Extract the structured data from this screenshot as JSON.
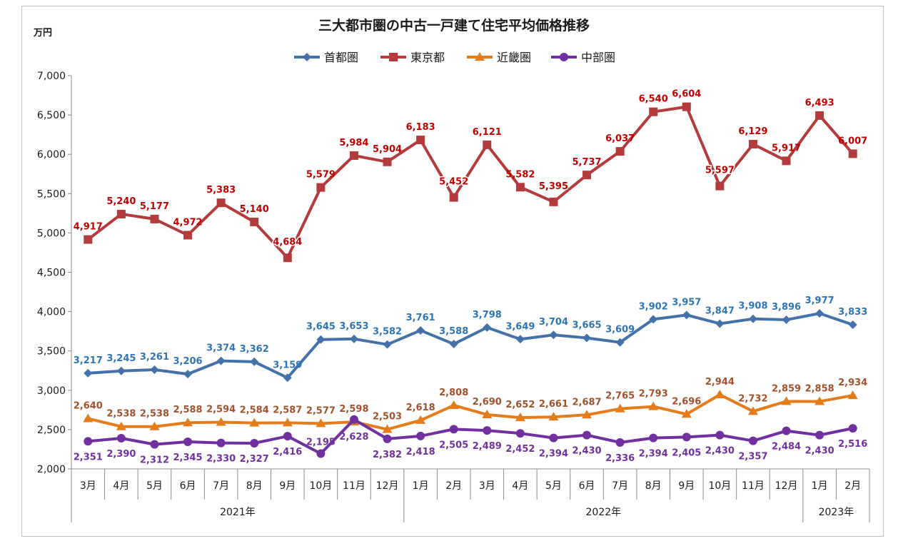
{
  "chart_data": {
    "type": "line",
    "title": "三大都市圏の中古一戸建て住宅平均価格推移",
    "unit": "万円",
    "ylim": [
      2000,
      7000
    ],
    "yticks": [
      2000,
      2500,
      3000,
      3500,
      4000,
      4500,
      5000,
      5500,
      6000,
      6500,
      7000
    ],
    "ytick_labels": [
      "2,000",
      "2,500",
      "3,000",
      "3,500",
      "4,000",
      "4,500",
      "5,000",
      "5,500",
      "6,000",
      "6,500",
      "7,000"
    ],
    "categories": [
      "3月",
      "4月",
      "5月",
      "6月",
      "7月",
      "8月",
      "9月",
      "10月",
      "11月",
      "12月",
      "1月",
      "2月",
      "3月",
      "4月",
      "5月",
      "6月",
      "7月",
      "8月",
      "9月",
      "10月",
      "11月",
      "12月",
      "1月",
      "2月"
    ],
    "years": [
      {
        "label": "2021年",
        "start": 0,
        "end": 9
      },
      {
        "label": "2022年",
        "start": 10,
        "end": 21
      },
      {
        "label": "2023年",
        "start": 22,
        "end": 23
      }
    ],
    "legend_position": "top-center",
    "series": [
      {
        "name": "首都圏",
        "color": "#4472a8",
        "label_color": "#2e75b6",
        "marker": "diamond",
        "values": [
          3217,
          3245,
          3261,
          3206,
          3374,
          3362,
          3159,
          3645,
          3653,
          3582,
          3761,
          3588,
          3798,
          3649,
          3704,
          3665,
          3609,
          3902,
          3957,
          3847,
          3908,
          3896,
          3977,
          3833
        ],
        "labels": [
          "3,217",
          "3,245",
          "3,261",
          "3,206",
          "3,374",
          "3,362",
          "3,159",
          "3,645",
          "3,653",
          "3,582",
          "3,761",
          "3,588",
          "3,798",
          "3,649",
          "3,704",
          "3,665",
          "3,609",
          "3,902",
          "3,957",
          "3,847",
          "3,908",
          "3,896",
          "3,977",
          "3,833"
        ]
      },
      {
        "name": "東京都",
        "color": "#b33b3b",
        "label_color": "#c00000",
        "marker": "square",
        "values": [
          4917,
          5240,
          5177,
          4972,
          5383,
          5140,
          4684,
          5579,
          5984,
          5904,
          6183,
          5452,
          6121,
          5582,
          5395,
          5737,
          6037,
          6540,
          6604,
          5597,
          6129,
          5917,
          6493,
          6007
        ],
        "labels": [
          "4,917",
          "5,240",
          "5,177",
          "4,972",
          "5,383",
          "5,140",
          "4,684",
          "5,579",
          "5,984",
          "5,904",
          "6,183",
          "5,452",
          "6,121",
          "5,582",
          "5,395",
          "5,737",
          "6,037",
          "6,540",
          "6,604",
          "5,597",
          "6,129",
          "5,917",
          "6,493",
          "6,007"
        ]
      },
      {
        "name": "近畿圏",
        "color": "#e57c1c",
        "label_color": "#a0522d",
        "marker": "triangle",
        "values": [
          2640,
          2538,
          2538,
          2588,
          2594,
          2584,
          2587,
          2577,
          2598,
          2503,
          2618,
          2808,
          2690,
          2652,
          2661,
          2687,
          2765,
          2793,
          2696,
          2944,
          2732,
          2859,
          2858,
          2934
        ],
        "labels": [
          "2,640",
          "2,538",
          "2,538",
          "2,588",
          "2,594",
          "2,584",
          "2,587",
          "2,577",
          "2,598",
          "2,503",
          "2,618",
          "2,808",
          "2,690",
          "2,652",
          "2,661",
          "2,687",
          "2,765",
          "2,793",
          "2,696",
          "2,944",
          "2,732",
          "2,859",
          "2,858",
          "2,934"
        ]
      },
      {
        "name": "中部圏",
        "color": "#7030a0",
        "label_color": "#7030a0",
        "marker": "circle",
        "values": [
          2351,
          2390,
          2312,
          2345,
          2330,
          2327,
          2416,
          2195,
          2628,
          2382,
          2418,
          2505,
          2489,
          2452,
          2394,
          2430,
          2336,
          2394,
          2405,
          2430,
          2357,
          2484,
          2430,
          2516
        ],
        "labels": [
          "2,351",
          "2,390",
          "2,312",
          "2,345",
          "2,330",
          "2,327",
          "2,416",
          "2,195",
          "2,628",
          "2,382",
          "2,418",
          "2,505",
          "2,489",
          "2,452",
          "2,394",
          "2,430",
          "2,336",
          "2,394",
          "2,405",
          "2,430",
          "2,357",
          "2,484",
          "2,430",
          "2,516"
        ]
      }
    ]
  }
}
